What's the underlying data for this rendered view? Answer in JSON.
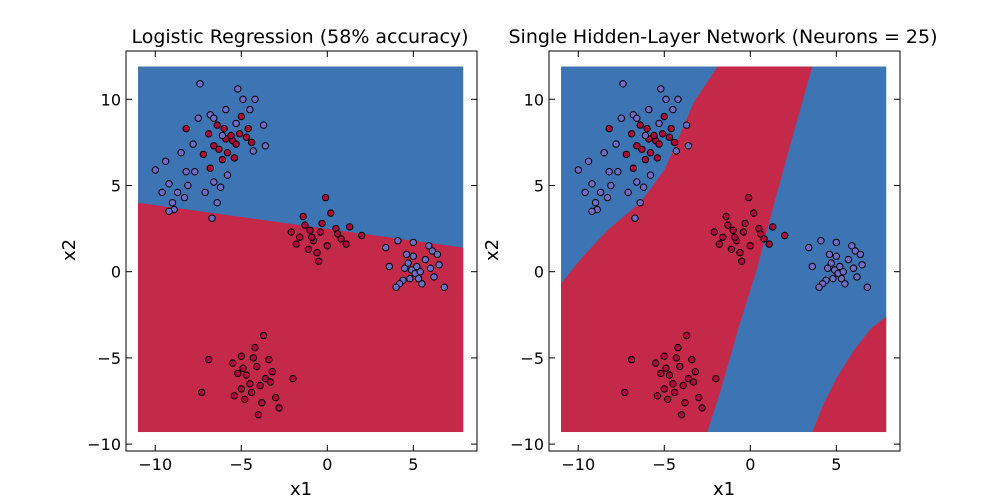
{
  "chart_data": [
    {
      "type": "scatter",
      "title": "Logistic Regression (58% accuracy)",
      "xlabel": "x1",
      "ylabel": "x2",
      "xlim": [
        -11.7,
        8.7
      ],
      "ylim": [
        -10.4,
        12.8
      ],
      "xticks": [
        -10,
        -5,
        0,
        5
      ],
      "yticks": [
        -10,
        -5,
        0,
        5,
        10
      ],
      "tick_labels_x": [
        "−10",
        "−5",
        "0",
        "5"
      ],
      "tick_labels_y": [
        "−10",
        "−5",
        "0",
        "5",
        "10"
      ],
      "grid": false,
      "decision_region": {
        "x_range": [
          -11,
          7.9
        ],
        "y_range": [
          -9.3,
          11.9
        ],
        "background_class": "blue",
        "regions": [
          {
            "class": "red",
            "boundary": [
              [
                -11,
                4.0
              ],
              [
                7.9,
                1.4
              ],
              [
                7.9,
                -9.3
              ],
              [
                -11,
                -9.3
              ]
            ]
          }
        ]
      },
      "series": [
        {
          "color": "#B2073B",
          "points": [
            [
              -6.0,
              8.3
            ],
            [
              -5.5,
              7.6
            ],
            [
              -6.3,
              7.1
            ],
            [
              -5.0,
              9.0
            ],
            [
              -4.7,
              7.8
            ],
            [
              -5.8,
              6.9
            ],
            [
              -6.4,
              8.5
            ],
            [
              -5.3,
              7.4
            ],
            [
              -6.9,
              8.0
            ],
            [
              -5.1,
              8.0
            ],
            [
              -4.4,
              7.5
            ],
            [
              -6.1,
              6.5
            ],
            [
              -5.6,
              7.9
            ],
            [
              -7.2,
              6.8
            ],
            [
              -5.9,
              7.7
            ],
            [
              -6.6,
              7.3
            ],
            [
              -4.6,
              8.3
            ],
            [
              -5.4,
              6.6
            ],
            [
              -8.2,
              8.3
            ],
            [
              -6.8,
              6.0
            ],
            [
              -1.4,
              3.2
            ],
            [
              -1.0,
              2.4
            ],
            [
              -1.6,
              2.0
            ],
            [
              -0.8,
              1.8
            ],
            [
              -1.3,
              2.7
            ],
            [
              -0.4,
              2.3
            ],
            [
              0.5,
              2.5
            ],
            [
              -1.1,
              1.3
            ],
            [
              0.8,
              1.9
            ],
            [
              -0.6,
              1.1
            ],
            [
              -2.1,
              2.3
            ],
            [
              0.2,
              3.4
            ],
            [
              1.1,
              1.6
            ],
            [
              -0.3,
              2.8
            ],
            [
              0.6,
              2.2
            ],
            [
              1.3,
              2.6
            ],
            [
              0.0,
              1.5
            ],
            [
              -1.8,
              1.6
            ],
            [
              -0.9,
              2.0
            ],
            [
              2.0,
              2.1
            ],
            [
              -0.5,
              0.6
            ],
            [
              -0.1,
              4.3
            ],
            [
              -4.7,
              -6.0
            ],
            [
              -4.1,
              -5.5
            ],
            [
              -5.0,
              -6.8
            ],
            [
              -3.6,
              -6.2
            ],
            [
              -4.4,
              -7.0
            ],
            [
              -3.9,
              -6.6
            ],
            [
              -5.2,
              -5.9
            ],
            [
              -4.8,
              -7.4
            ],
            [
              -3.3,
              -6.4
            ],
            [
              -4.2,
              -4.4
            ],
            [
              -5.5,
              -5.3
            ],
            [
              -3.0,
              -7.3
            ],
            [
              -4.5,
              -6.5
            ],
            [
              -3.8,
              -7.6
            ],
            [
              -5.4,
              -7.2
            ],
            [
              -3.2,
              -5.8
            ],
            [
              -4.9,
              -5.6
            ],
            [
              -4.0,
              -8.3
            ],
            [
              -6.9,
              -5.1
            ],
            [
              -2.8,
              -7.9
            ],
            [
              -3.7,
              -3.7
            ],
            [
              -7.3,
              -7.0
            ],
            [
              -2.0,
              -6.2
            ],
            [
              -4.3,
              -5.0
            ],
            [
              -5.0,
              -4.9
            ],
            [
              -3.4,
              -5.1
            ]
          ]
        },
        {
          "color": "#6E6EC8",
          "points": [
            [
              -7.4,
              10.9
            ],
            [
              -5.2,
              10.6
            ],
            [
              -4.9,
              10.0
            ],
            [
              -4.2,
              10.0
            ],
            [
              -5.9,
              9.4
            ],
            [
              -6.8,
              9.1
            ],
            [
              -7.5,
              8.9
            ],
            [
              -4.5,
              9.4
            ],
            [
              -3.7,
              8.5
            ],
            [
              -6.6,
              8.9
            ],
            [
              -8.5,
              6.9
            ],
            [
              -7.8,
              7.4
            ],
            [
              -3.6,
              7.3
            ],
            [
              -6.1,
              7.9
            ],
            [
              -5.3,
              8.6
            ],
            [
              -4.3,
              7.0
            ],
            [
              -8.2,
              5.8
            ],
            [
              -9.4,
              6.4
            ],
            [
              -10.0,
              5.9
            ],
            [
              -9.2,
              5.1
            ],
            [
              -8.7,
              4.6
            ],
            [
              -9.0,
              4.0
            ],
            [
              -8.3,
              4.3
            ],
            [
              -7.1,
              4.6
            ],
            [
              -8.9,
              3.6
            ],
            [
              -9.6,
              4.6
            ],
            [
              -6.6,
              5.2
            ],
            [
              -6.4,
              4.0
            ],
            [
              -6.7,
              3.1
            ],
            [
              -5.8,
              5.6
            ],
            [
              -8.1,
              5.0
            ],
            [
              -9.2,
              3.5
            ],
            [
              -6.2,
              4.9
            ],
            [
              -7.7,
              5.8
            ],
            [
              3.4,
              1.4
            ],
            [
              4.1,
              1.8
            ],
            [
              5.0,
              0.9
            ],
            [
              4.5,
              0.2
            ],
            [
              5.2,
              0.3
            ],
            [
              5.7,
              0.7
            ],
            [
              4.8,
              -0.4
            ],
            [
              6.1,
              1.2
            ],
            [
              3.6,
              0.3
            ],
            [
              4.4,
              -0.5
            ],
            [
              5.3,
              -0.4
            ],
            [
              6.4,
              1.0
            ],
            [
              4.9,
              0.1
            ],
            [
              6.8,
              -0.9
            ],
            [
              5.5,
              -0.7
            ],
            [
              4.2,
              -0.7
            ],
            [
              5.9,
              1.5
            ],
            [
              6.0,
              0.2
            ],
            [
              4.7,
              0.5
            ],
            [
              5.1,
              -0.1
            ],
            [
              4.0,
              -0.9
            ],
            [
              6.5,
              0.4
            ],
            [
              5.0,
              1.7
            ],
            [
              5.4,
              0.0
            ],
            [
              6.2,
              -0.3
            ],
            [
              4.6,
              1.0
            ]
          ]
        }
      ]
    },
    {
      "type": "scatter",
      "title": "Single Hidden-Layer Network (Neurons = 25)",
      "xlabel": "x1",
      "ylabel": "x2",
      "xlim": [
        -11.7,
        8.7
      ],
      "ylim": [
        -10.4,
        12.8
      ],
      "xticks": [
        -10,
        -5,
        0,
        5
      ],
      "yticks": [
        -10,
        -5,
        0,
        5,
        10
      ],
      "tick_labels_x": [
        "−10",
        "−5",
        "0",
        "5"
      ],
      "tick_labels_y": [
        "−10",
        "−5",
        "0",
        "5",
        "10"
      ],
      "grid": false,
      "decision_region": {
        "x_range": [
          -11,
          7.9
        ],
        "y_range": [
          -9.3,
          11.9
        ],
        "background_class": "blue",
        "regions": [
          {
            "class": "red",
            "boundary": [
              [
                -1.9,
                11.9
              ],
              [
                3.6,
                11.9
              ],
              [
                2.5,
                8.0
              ],
              [
                1.4,
                4.0
              ],
              [
                0.4,
                0.2
              ],
              [
                -0.7,
                -3.3
              ],
              [
                -1.7,
                -6.8
              ],
              [
                -2.5,
                -9.3
              ],
              [
                -11.0,
                -9.3
              ],
              [
                -11.0,
                -0.7
              ],
              [
                -9.8,
                0.8
              ],
              [
                -8.3,
                2.4
              ],
              [
                -6.4,
                4.0
              ],
              [
                -5.0,
                5.9
              ],
              [
                -4.1,
                7.9
              ],
              [
                -3.3,
                9.8
              ]
            ]
          },
          {
            "class": "red",
            "boundary": [
              [
                7.9,
                -2.6
              ],
              [
                7.0,
                -3.3
              ],
              [
                6.0,
                -4.6
              ],
              [
                5.0,
                -6.2
              ],
              [
                4.2,
                -7.8
              ],
              [
                3.6,
                -9.3
              ],
              [
                7.9,
                -9.3
              ]
            ]
          }
        ]
      },
      "series": [
        {
          "color": "#B2073B",
          "same_points_as": 0
        },
        {
          "color": "#6E6EC8",
          "same_points_as": 1
        }
      ]
    }
  ],
  "colors": {
    "region_blue": "#3C74B4",
    "region_red": "#C4294A",
    "point_outline": "#000000"
  }
}
